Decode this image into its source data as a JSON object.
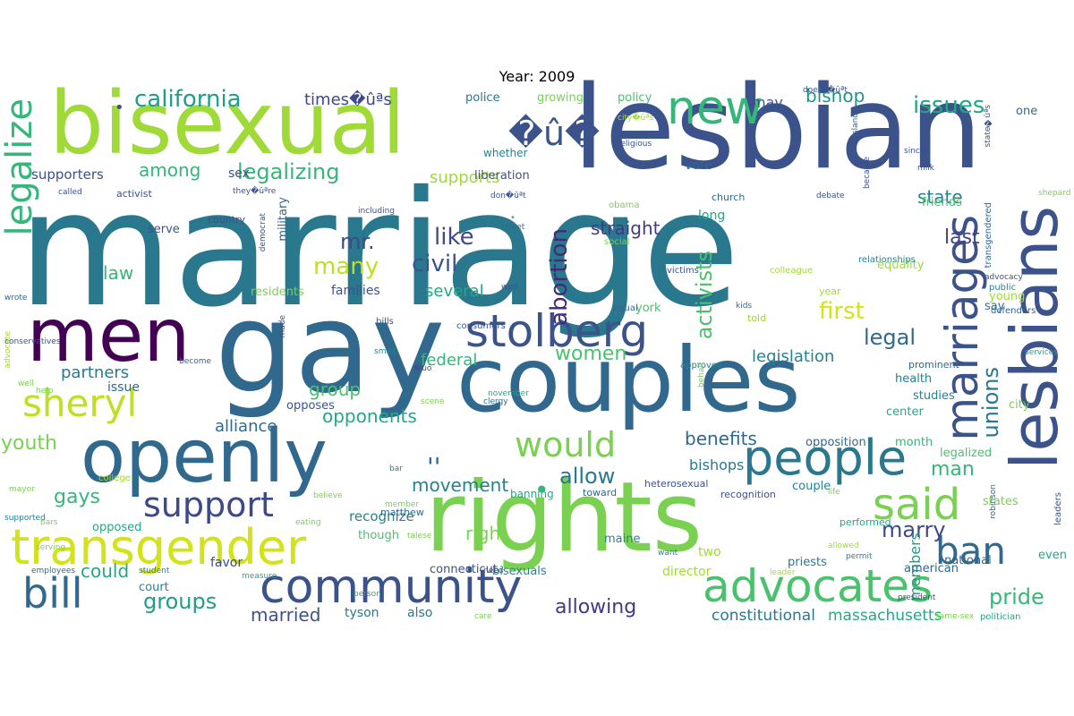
{
  "title": "Year: 2009",
  "words": [
    {
      "text": "marriage",
      "color": "#2a788e"
    },
    {
      "text": "lesbian",
      "color": "#3b528b"
    },
    {
      "text": "bisexual",
      "color": "#a0da39"
    },
    {
      "text": "gay",
      "color": "#31688e"
    },
    {
      "text": "men",
      "color": "#440154"
    },
    {
      "text": "couples",
      "color": "#31688e"
    },
    {
      "text": "rights",
      "color": "#7ad151"
    },
    {
      "text": "openly",
      "color": "#31688e"
    },
    {
      "text": "lesbians",
      "color": "#3b528b"
    },
    {
      "text": "transgender",
      "color": "#d2e21b"
    },
    {
      "text": "community",
      "color": "#3b528b"
    },
    {
      "text": "advocates",
      "color": "#4ac16d"
    },
    {
      "text": "people",
      "color": "#2a788e"
    },
    {
      "text": "stolberg",
      "color": "#3b528b"
    },
    {
      "text": "new",
      "color": "#35b779"
    },
    {
      "text": "bill",
      "color": "#31688e"
    },
    {
      "text": "sheryl",
      "color": "#bddf26"
    },
    {
      "text": "said",
      "color": "#7ad151"
    },
    {
      "text": "marriages",
      "color": "#3b528b"
    },
    {
      "text": "support",
      "color": "#3e4989"
    },
    {
      "text": "would",
      "color": "#7ad151"
    },
    {
      "text": "ban",
      "color": "#31688e"
    },
    {
      "text": "legalize",
      "color": "#35b779"
    },
    {
      "text": "california",
      "color": "#1f9e89"
    },
    {
      "text": "legalizing",
      "color": "#35b779"
    },
    {
      "text": "abortion",
      "color": "#482878"
    },
    {
      "text": "issues",
      "color": "#22a884"
    },
    {
      "text": "first",
      "color": "#d2e21b"
    },
    {
      "text": "like",
      "color": "#3e4989"
    },
    {
      "text": "civil",
      "color": "#3b528b"
    },
    {
      "text": "many",
      "color": "#bddf26"
    },
    {
      "text": "groups",
      "color": "#1f9e89"
    },
    {
      "text": "unions",
      "color": "#2a788e"
    },
    {
      "text": "pride",
      "color": "#35b779"
    },
    {
      "text": "allow",
      "color": "#2a788e"
    },
    {
      "text": "movement",
      "color": "#26828e"
    },
    {
      "text": "gays",
      "color": "#35b779"
    },
    {
      "text": "women",
      "color": "#4ac16d"
    },
    {
      "text": "opponents",
      "color": "#22a884"
    },
    {
      "text": "among",
      "color": "#35b779"
    },
    {
      "text": "legal",
      "color": "#31688e"
    },
    {
      "text": "mr.",
      "color": "#3e4989"
    },
    {
      "text": "marry",
      "color": "#3e4989"
    },
    {
      "text": "activists",
      "color": "#4ac16d"
    },
    {
      "text": "youth",
      "color": "#7ad151"
    },
    {
      "text": "allowing",
      "color": "#443983"
    },
    {
      "text": "partners",
      "color": "#2a788e"
    },
    {
      "text": "group",
      "color": "#4ac16d"
    },
    {
      "text": "last",
      "color": "#414487"
    },
    {
      "text": "bishop",
      "color": "#21918c"
    },
    {
      "text": "man",
      "color": "#35b779"
    },
    {
      "text": "supports",
      "color": "#a0da39"
    },
    {
      "text": "legislation",
      "color": "#26828e"
    },
    {
      "text": "benefits",
      "color": "#31688e"
    },
    {
      "text": "law",
      "color": "#35b779"
    },
    {
      "text": "alliance",
      "color": "#31688e"
    },
    {
      "text": "could",
      "color": "#22a884"
    },
    {
      "text": "several",
      "color": "#22a884"
    },
    {
      "text": "federal",
      "color": "#35b779"
    },
    {
      "text": "right",
      "color": "#7ad151"
    },
    {
      "text": "straight",
      "color": "#443983"
    },
    {
      "text": "members",
      "color": "#1f9e89"
    },
    {
      "text": "married",
      "color": "#3b528b"
    },
    {
      "text": "state",
      "color": "#26828e"
    },
    {
      "text": "constitutional",
      "color": "#2a788e"
    },
    {
      "text": "massachusetts",
      "color": "#22a884"
    },
    {
      "text": "times�ûªs",
      "color": "#3e4989"
    },
    {
      "text": "may",
      "color": "#3b528b"
    },
    {
      "text": "bishops",
      "color": "#2a788e"
    },
    {
      "text": "supporters",
      "color": "#3b528b"
    },
    {
      "text": "recognize",
      "color": "#26828e"
    },
    {
      "text": "favor",
      "color": "#3e4989"
    },
    {
      "text": "two",
      "color": "#a0da39"
    },
    {
      "text": "also",
      "color": "#2a788e"
    },
    {
      "text": "tyson",
      "color": "#2a788e"
    },
    {
      "text": "director",
      "color": "#a0da39"
    },
    {
      "text": "york",
      "color": "#4ac16d"
    },
    {
      "text": "police",
      "color": "#2a788e"
    },
    {
      "text": "growing",
      "color": "#7ad151"
    },
    {
      "text": "policy",
      "color": "#4ac16d"
    },
    {
      "text": "even",
      "color": "#22a884"
    },
    {
      "text": "one",
      "color": "#31688e"
    },
    {
      "text": "say",
      "color": "#31688e"
    },
    {
      "text": "whether",
      "color": "#26828e"
    },
    {
      "text": "vote",
      "color": "#31688e"
    },
    {
      "text": "sex",
      "color": "#3b528b"
    },
    {
      "text": "long",
      "color": "#22a884"
    },
    {
      "text": "issue",
      "color": "#31688e"
    },
    {
      "text": "though",
      "color": "#4ac16d"
    },
    {
      "text": "families",
      "color": "#3b528b"
    },
    {
      "text": "military",
      "color": "#31688e"
    },
    {
      "text": "friends",
      "color": "#4ac16d"
    },
    {
      "text": "young",
      "color": "#a0da39"
    },
    {
      "text": "equality",
      "color": "#a0da39"
    },
    {
      "text": "month",
      "color": "#35b779"
    },
    {
      "text": "couple",
      "color": "#26828e"
    },
    {
      "text": "opposition",
      "color": "#31688e"
    },
    {
      "text": "center",
      "color": "#22a884"
    },
    {
      "text": "health",
      "color": "#26828e"
    },
    {
      "text": "studies",
      "color": "#26828e"
    },
    {
      "text": "city",
      "color": "#7ad151"
    },
    {
      "text": "legalized",
      "color": "#4ac16d"
    },
    {
      "text": "states",
      "color": "#7ad151"
    },
    {
      "text": "national",
      "color": "#31688e"
    },
    {
      "text": "american",
      "color": "#31688e"
    },
    {
      "text": "priests",
      "color": "#2a788e"
    },
    {
      "text": "maine",
      "color": "#26828e"
    },
    {
      "text": "bisexuals",
      "color": "#26828e"
    },
    {
      "text": "connecticut",
      "color": "#3b528b"
    },
    {
      "text": "opposes",
      "color": "#3b528b"
    },
    {
      "text": "opposed",
      "color": "#22a884"
    },
    {
      "text": "court",
      "color": "#26828e"
    },
    {
      "text": "residents",
      "color": "#7ad151"
    },
    {
      "text": "serve",
      "color": "#3b528b"
    },
    {
      "text": "liberation",
      "color": "#3b528b"
    },
    {
      "text": "activist",
      "color": "#3b528b"
    },
    {
      "text": "banning",
      "color": "#22a884"
    },
    {
      "text": "heterosexual",
      "color": "#3b528b"
    },
    {
      "text": "toward",
      "color": "#31688e"
    },
    {
      "text": "recognition",
      "color": "#3b528b"
    },
    {
      "text": "matthew",
      "color": "#31688e"
    },
    {
      "text": "performed",
      "color": "#22a884"
    },
    {
      "text": "equal",
      "color": "#31688e"
    },
    {
      "text": "told",
      "color": "#a0da39"
    },
    {
      "text": "year",
      "color": "#a0da39"
    },
    {
      "text": "public",
      "color": "#26828e"
    },
    {
      "text": "defenders",
      "color": "#31688e"
    },
    {
      "text": "prominent",
      "color": "#31688e"
    },
    {
      "text": "church",
      "color": "#31688e"
    },
    {
      "text": "obama",
      "color": "#7ad151"
    },
    {
      "text": "country",
      "color": "#3b528b"
    },
    {
      "text": "social",
      "color": "#7ad151"
    },
    {
      "text": "victims",
      "color": "#3b528b"
    },
    {
      "text": "relationships",
      "color": "#26828e"
    },
    {
      "text": "transgendered",
      "color": "#31688e"
    },
    {
      "text": "colleague",
      "color": "#a0da39"
    },
    {
      "text": "advocacy",
      "color": "#3b528b"
    },
    {
      "text": "bills",
      "color": "#3b528b"
    },
    {
      "text": "consumers",
      "color": "#3b528b"
    },
    {
      "text": "approved",
      "color": "#26828e"
    },
    {
      "text": "clergy",
      "color": "#31688e"
    },
    {
      "text": "november",
      "color": "#22a884"
    },
    {
      "text": "scene",
      "color": "#7ad151"
    },
    {
      "text": "small",
      "color": "#26828e"
    },
    {
      "text": "become",
      "color": "#31688e"
    },
    {
      "text": "well",
      "color": "#7ad151"
    },
    {
      "text": "help",
      "color": "#7ad151"
    },
    {
      "text": "mayor",
      "color": "#7ad151"
    },
    {
      "text": "supported",
      "color": "#26828e"
    },
    {
      "text": "serving",
      "color": "#7ad151"
    },
    {
      "text": "college",
      "color": "#a0da39"
    },
    {
      "text": "eating",
      "color": "#7ad151"
    },
    {
      "text": "member",
      "color": "#7ad151"
    },
    {
      "text": "believe",
      "color": "#7ad151"
    },
    {
      "text": "employees",
      "color": "#31688e"
    },
    {
      "text": "student",
      "color": "#26828e"
    },
    {
      "text": "measure",
      "color": "#22a884"
    },
    {
      "text": "care",
      "color": "#7ad151"
    },
    {
      "text": "need",
      "color": "#3b528b"
    },
    {
      "text": "want",
      "color": "#26828e"
    },
    {
      "text": "talese",
      "color": "#7ad151"
    },
    {
      "text": "bar",
      "color": "#26828e"
    },
    {
      "text": "person",
      "color": "#22a884"
    },
    {
      "text": "permit",
      "color": "#26828e"
    },
    {
      "text": "allowed",
      "color": "#a0da39"
    },
    {
      "text": "leader",
      "color": "#a0da39"
    },
    {
      "text": "president",
      "color": "#3b528b"
    },
    {
      "text": "same-sex",
      "color": "#7ad151"
    },
    {
      "text": "politician",
      "color": "#22a884"
    },
    {
      "text": "life",
      "color": "#7ad151"
    },
    {
      "text": "services",
      "color": "#22a884"
    },
    {
      "text": "robinson",
      "color": "#31688e"
    },
    {
      "text": "leaders",
      "color": "#3b528b"
    },
    {
      "text": "behalf",
      "color": "#7ad151"
    },
    {
      "text": "kids",
      "color": "#31688e"
    },
    {
      "text": "wed",
      "color": "#3b528b"
    },
    {
      "text": "street",
      "color": "#31688e"
    },
    {
      "text": "including",
      "color": "#3b528b"
    },
    {
      "text": "called",
      "color": "#3b528b"
    },
    {
      "text": "wrote",
      "color": "#31688e"
    },
    {
      "text": "advocate",
      "color": "#a0da39"
    },
    {
      "text": "conservatives",
      "color": "#3b528b"
    },
    {
      "text": "democrat",
      "color": "#3b528b"
    },
    {
      "text": "made",
      "color": "#3b528b"
    },
    {
      "text": "doesn�ûªt",
      "color": "#3b528b"
    },
    {
      "text": "island",
      "color": "#31688e"
    },
    {
      "text": "since",
      "color": "#3b528b"
    },
    {
      "text": "milk",
      "color": "#3b528b"
    },
    {
      "text": "shepard",
      "color": "#7ad151"
    },
    {
      "text": "debate",
      "color": "#3b528b"
    },
    {
      "text": "became",
      "color": "#3b528b"
    },
    {
      "text": "religious",
      "color": "#3b528b"
    },
    {
      "text": "don�ûªt",
      "color": "#3b528b"
    },
    {
      "text": "city�ûªs",
      "color": "#a0da39"
    },
    {
      "text": "state�ûªs",
      "color": "#3b528b"
    },
    {
      "text": "they�ûªre",
      "color": "#3b528b"
    },
    {
      "text": "bars",
      "color": "#7ad151"
    },
    {
      "text": "�ûó",
      "color": "#3b528b"
    },
    {
      "text": "�û�",
      "color": "#3b528b"
    },
    {
      "text": "''",
      "color": "#31688e"
    },
    {
      "text": "•",
      "color": "#35b779"
    },
    {
      "text": "•",
      "color": "#3b528b"
    },
    {
      "text": "•",
      "color": "#35b779"
    }
  ]
}
